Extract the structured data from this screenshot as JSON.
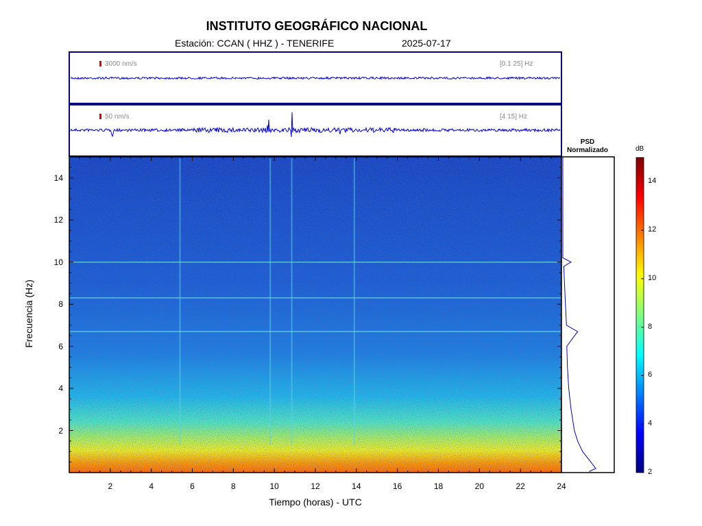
{
  "header": {
    "title": "INSTITUTO GEOGRÁFICO NACIONAL",
    "station": "Estación:  CCAN ( HHZ ) - TENERIFE",
    "date": "2025-07-17"
  },
  "panels": {
    "trace1": {
      "scale": "3000 nm/s",
      "band": "[0.1 25] Hz"
    },
    "trace2": {
      "scale": "50 nm/s",
      "band": "[4 15] Hz"
    },
    "psd_title_line1": "PSD",
    "psd_title_line2": "Normalizado"
  },
  "colors": {
    "trace": "#0000dd",
    "axis": "#000080",
    "scale_marker": "#e00000"
  },
  "chart_data": {
    "type": "heatmap",
    "xlabel": "Tiempo (horas) - UTC",
    "ylabel": "Frecuencia  (Hz)",
    "xlim": [
      0,
      24
    ],
    "ylim": [
      0,
      15
    ],
    "x_ticks": [
      "2",
      "4",
      "6",
      "8",
      "10",
      "12",
      "14",
      "16",
      "18",
      "20",
      "22",
      "24"
    ],
    "y_ticks": [
      "2",
      "4",
      "6",
      "8",
      "10",
      "12",
      "14"
    ],
    "colorbar": {
      "label": "dB",
      "range": [
        2,
        15
      ],
      "ticks": [
        "2",
        "4",
        "6",
        "8",
        "10",
        "12",
        "14"
      ],
      "colormap": "jet"
    },
    "horizontal_lines_hz": [
      10.0,
      8.3,
      6.7
    ],
    "psd_profile": [
      {
        "f": 0.05,
        "v": 0.8
      },
      {
        "f": 0.2,
        "v": 1.0
      },
      {
        "f": 0.5,
        "v": 0.85
      },
      {
        "f": 1.0,
        "v": 0.6
      },
      {
        "f": 1.5,
        "v": 0.45
      },
      {
        "f": 2.0,
        "v": 0.35
      },
      {
        "f": 3.0,
        "v": 0.25
      },
      {
        "f": 4.0,
        "v": 0.18
      },
      {
        "f": 5.0,
        "v": 0.14
      },
      {
        "f": 6.0,
        "v": 0.12
      },
      {
        "f": 6.7,
        "v": 0.45
      },
      {
        "f": 7.0,
        "v": 0.11
      },
      {
        "f": 8.0,
        "v": 0.08
      },
      {
        "f": 9.0,
        "v": 0.05
      },
      {
        "f": 9.8,
        "v": 0.03
      },
      {
        "f": 10.0,
        "v": 0.25
      },
      {
        "f": 10.2,
        "v": 0.0
      },
      {
        "f": 15.0,
        "v": 0.0
      }
    ]
  }
}
